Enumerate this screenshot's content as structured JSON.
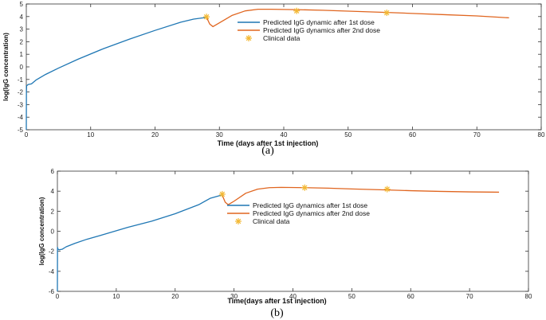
{
  "chart_data": [
    {
      "type": "line",
      "panel_label": "(a)",
      "xlabel": "Time (days after 1st injection)",
      "ylabel": "log(IgG concentration)",
      "xlim": [
        0,
        80
      ],
      "ylim": [
        -5,
        5
      ],
      "xticks": [
        0,
        10,
        20,
        30,
        40,
        50,
        60,
        70,
        80
      ],
      "yticks": [
        -5,
        -4,
        -3,
        -2,
        -1,
        0,
        1,
        2,
        3,
        4,
        5
      ],
      "grid": false,
      "legend_position": "center",
      "series": [
        {
          "name": "Predicted IgG dynamic after 1st dose",
          "color": "#1f77b4",
          "x": [
            0,
            0.02,
            0.05,
            0.3,
            0.8,
            1.5,
            3,
            5,
            8,
            12,
            16,
            20,
            24,
            26,
            27.5,
            28
          ],
          "y": [
            -5,
            -2.0,
            -1.5,
            -1.4,
            -1.35,
            -1.05,
            -0.6,
            -0.1,
            0.6,
            1.45,
            2.2,
            2.9,
            3.55,
            3.8,
            3.9,
            3.95
          ]
        },
        {
          "name": "Predicted IgG dynamics after 2nd dose",
          "color": "#e0651f",
          "x": [
            28,
            28.5,
            29,
            30,
            32,
            34,
            36,
            38,
            42,
            46,
            50,
            56,
            60,
            65,
            70,
            75
          ],
          "y": [
            3.95,
            3.4,
            3.2,
            3.5,
            4.1,
            4.45,
            4.58,
            4.58,
            4.55,
            4.5,
            4.43,
            4.33,
            4.25,
            4.15,
            4.05,
            3.9
          ]
        },
        {
          "name": "Clinical data",
          "color": "#f3b833",
          "marker": "asterisk",
          "x": [
            28,
            42,
            56
          ],
          "y": [
            3.98,
            4.45,
            4.3
          ]
        }
      ]
    },
    {
      "type": "line",
      "panel_label": "(b)",
      "xlabel": "Time(days after 1st injection)",
      "ylabel": "log(IgG concentration)",
      "xlim": [
        0,
        80
      ],
      "ylim": [
        -6,
        6
      ],
      "xticks": [
        0,
        10,
        20,
        30,
        40,
        50,
        60,
        70,
        80
      ],
      "yticks": [
        -6,
        -4,
        -2,
        0,
        2,
        4,
        6
      ],
      "grid": false,
      "legend_position": "center",
      "series": [
        {
          "name": "Predicted IgG dynamics after 1st dose",
          "color": "#1f77b4",
          "x": [
            0,
            0.02,
            0.05,
            0.3,
            0.8,
            1.5,
            3,
            5,
            8,
            12,
            16,
            20,
            24,
            26,
            27.5,
            28
          ],
          "y": [
            -6,
            -1.6,
            -1.75,
            -1.85,
            -1.8,
            -1.55,
            -1.2,
            -0.8,
            -0.3,
            0.4,
            1.0,
            1.75,
            2.65,
            3.3,
            3.55,
            3.6
          ]
        },
        {
          "name": "Predicted IgG dynamics after 2nd dose",
          "color": "#e0651f",
          "x": [
            28,
            28.5,
            29,
            30,
            32,
            34,
            36,
            38,
            42,
            46,
            50,
            56,
            60,
            65,
            70,
            75
          ],
          "y": [
            3.6,
            2.9,
            2.65,
            3.0,
            3.8,
            4.2,
            4.35,
            4.38,
            4.35,
            4.3,
            4.22,
            4.12,
            4.05,
            3.98,
            3.93,
            3.9
          ]
        },
        {
          "name": "Clinical data",
          "color": "#f3b833",
          "marker": "asterisk",
          "x": [
            28,
            42,
            56
          ],
          "y": [
            3.7,
            4.35,
            4.2
          ]
        }
      ]
    }
  ]
}
